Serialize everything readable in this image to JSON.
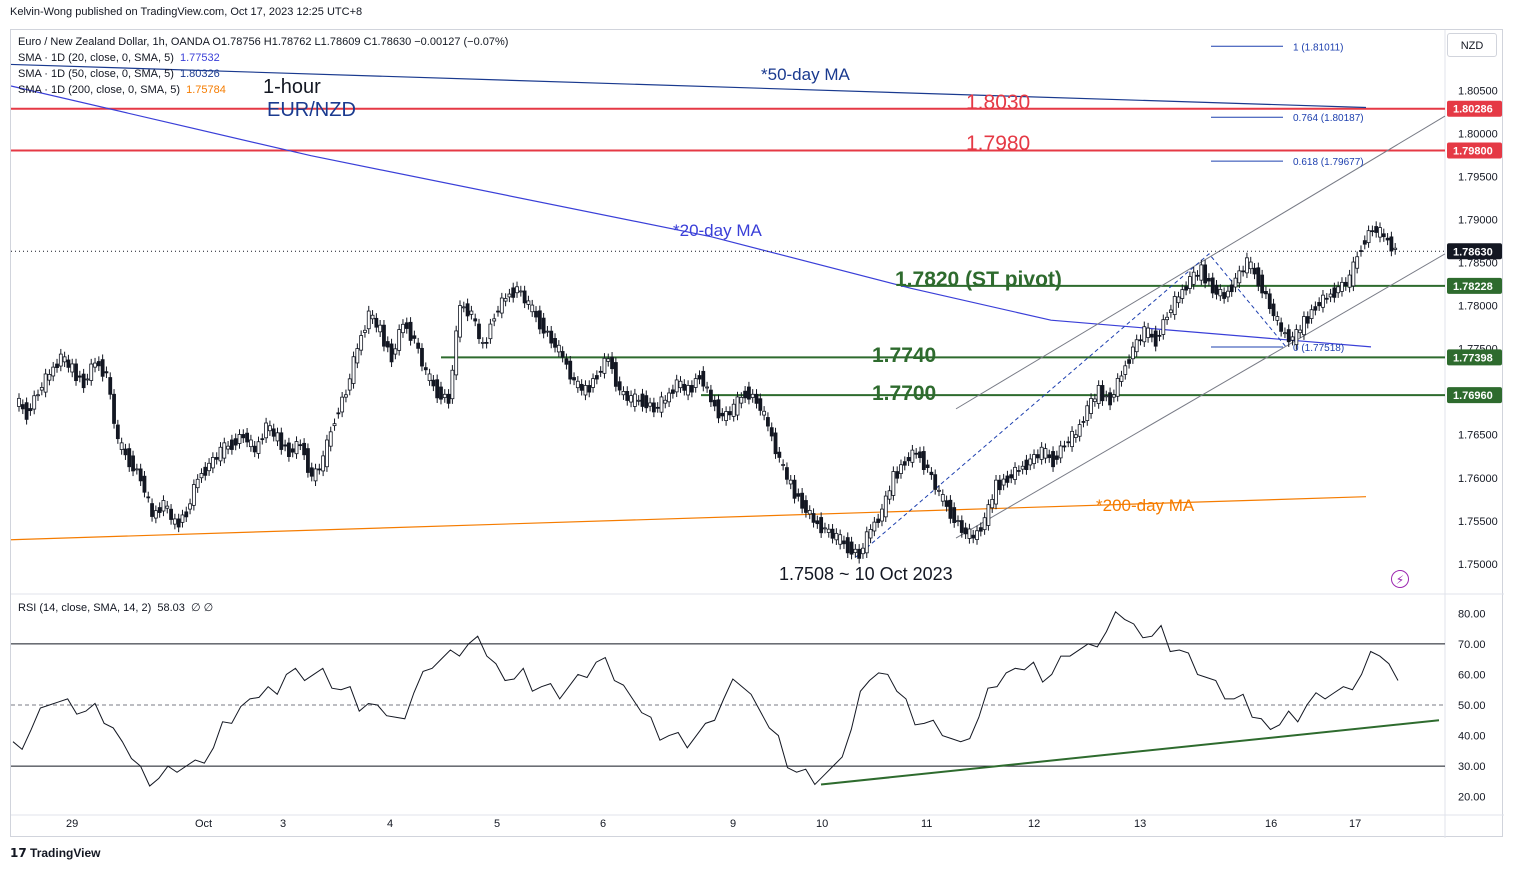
{
  "header": {
    "publisher": "Kelvin-Wong published on TradingView.com, Oct 17, 2023 12:25 UTC+8"
  },
  "legend": {
    "main": "Euro / New Zealand Dollar, 1h, OANDA  O1.78756  H1.78762  L1.78609  C1.78630  −0.00127 (−0.07%)",
    "sma20_label": "SMA · 1D (20, close, 0, SMA, 5)",
    "sma20_value": "1.77532",
    "sma50_label": "SMA · 1D (50, close, 0, SMA, 5)",
    "sma50_value": "1.80326",
    "sma200_label": "SMA · 1D (200, close, 0, SMA, 5)",
    "sma200_value": "1.75784",
    "rsi_label": "RSI (14, close, SMA, 14, 2)",
    "rsi_value": "58.03",
    "rsi_extra": "∅  ∅"
  },
  "currency": "NZD",
  "footer": "TradingView",
  "colors": {
    "sma20": "#3a3fd8",
    "sma50": "#1a3a8f",
    "sma200": "#f57c00",
    "resistance": "#e53945",
    "support": "#2e6b2e",
    "candle": "#131722",
    "rsi_line": "#131722",
    "rsi_fill": "#f8bbc4",
    "rsi_fill_low": "#b7e4c7",
    "fib": "#1e40af"
  },
  "chart_data": {
    "type": "candlestick",
    "instrument": "EUR/NZD",
    "timeframe": "1h",
    "x_ticks": [
      "29",
      "Oct",
      "3",
      "4",
      "5",
      "6",
      "9",
      "10",
      "11",
      "12",
      "13",
      "16",
      "17"
    ],
    "y_ticks": [
      "1.80500",
      "1.80000",
      "1.79500",
      "1.79000",
      "1.78500",
      "1.78000",
      "1.77500",
      "1.76500",
      "1.76000",
      "1.75500",
      "1.75000"
    ],
    "ylim": [
      1.7465,
      1.812
    ],
    "price_labels": [
      {
        "text": "1.80286",
        "value": 1.80286,
        "color": "#e53945"
      },
      {
        "text": "1.79800",
        "value": 1.798,
        "color": "#e53945"
      },
      {
        "text": "1.78630",
        "value": 1.7863,
        "color": "#131722"
      },
      {
        "text": "1.78228",
        "value": 1.78228,
        "color": "#2e6b2e"
      },
      {
        "text": "1.77398",
        "value": 1.77398,
        "color": "#2e6b2e"
      },
      {
        "text": "1.76960",
        "value": 1.7696,
        "color": "#2e6b2e"
      }
    ],
    "annotations": {
      "title_line1": "1-hour",
      "title_line2": "EUR/NZD",
      "ma50": "*50-day MA",
      "ma20": "*20-day MA",
      "ma200": "*200-day MA",
      "res1": "1.8030",
      "res2": "1.7980",
      "pivot": "1.7820 (ST pivot)",
      "sup1": "1.7740",
      "sup2": "1.7700",
      "low": "1.7508 ~ 10 Oct 2023"
    },
    "fib_levels": [
      {
        "label": "1 (1.81011)",
        "value": 1.81011
      },
      {
        "label": "0.764 (1.80187)",
        "value": 1.80187
      },
      {
        "label": "0.618 (1.79677)",
        "value": 1.79677
      },
      {
        "label": "0 (1.77518)",
        "value": 1.77518
      }
    ],
    "horizontal_levels": [
      {
        "value": 1.80286,
        "color": "#e53945"
      },
      {
        "value": 1.798,
        "color": "#e53945"
      },
      {
        "value": 1.78228,
        "color": "#2e6b2e"
      },
      {
        "value": 1.77398,
        "color": "#2e6b2e"
      },
      {
        "value": 1.7696,
        "color": "#2e6b2e"
      }
    ],
    "price_path": [
      1.769,
      1.7675,
      1.77,
      1.772,
      1.774,
      1.7725,
      1.771,
      1.7735,
      1.772,
      1.764,
      1.762,
      1.76,
      1.7555,
      1.757,
      1.7545,
      1.756,
      1.76,
      1.7615,
      1.763,
      1.764,
      1.765,
      1.763,
      1.766,
      1.7645,
      1.763,
      1.764,
      1.76,
      1.762,
      1.767,
      1.77,
      1.775,
      1.779,
      1.777,
      1.774,
      1.778,
      1.776,
      1.772,
      1.77,
      1.769,
      1.78,
      1.779,
      1.775,
      1.779,
      1.781,
      1.782,
      1.78,
      1.778,
      1.776,
      1.774,
      1.771,
      1.77,
      1.772,
      1.774,
      1.77,
      1.769,
      1.769,
      1.768,
      1.769,
      1.771,
      1.77,
      1.772,
      1.769,
      1.767,
      1.768,
      1.77,
      1.769,
      1.766,
      1.762,
      1.759,
      1.757,
      1.755,
      1.754,
      1.753,
      1.752,
      1.751,
      1.754,
      1.756,
      1.76,
      1.762,
      1.763,
      1.761,
      1.758,
      1.756,
      1.754,
      1.753,
      1.755,
      1.759,
      1.76,
      1.761,
      1.762,
      1.763,
      1.762,
      1.764,
      1.765,
      1.768,
      1.77,
      1.769,
      1.772,
      1.775,
      1.777,
      1.776,
      1.779,
      1.781,
      1.783,
      1.784,
      1.782,
      1.781,
      1.783,
      1.785,
      1.783,
      1.78,
      1.777,
      1.776,
      1.778,
      1.78,
      1.781,
      1.782,
      1.783,
      1.787,
      1.789,
      1.788,
      1.7863
    ],
    "rsi": {
      "ylim": [
        15,
        85
      ],
      "y_ticks": [
        "80.00",
        "70.00",
        "60.00",
        "50.00",
        "40.00",
        "30.00",
        "20.00"
      ],
      "levels": [
        70,
        50,
        30
      ],
      "values": [
        38,
        42,
        50,
        52,
        48,
        44,
        38,
        30,
        26,
        28,
        32,
        36,
        44,
        52,
        56,
        60,
        58,
        62,
        55,
        48,
        50,
        46,
        54,
        62,
        68,
        70,
        66,
        58,
        62,
        56,
        52,
        60,
        64,
        58,
        52,
        46,
        40,
        36,
        44,
        52,
        56,
        48,
        40,
        28,
        24,
        30,
        42,
        58,
        60,
        52,
        44,
        40,
        38,
        46,
        56,
        62,
        64,
        60,
        66,
        70,
        74,
        78,
        72,
        76,
        68,
        60,
        58,
        52,
        46,
        42,
        48,
        50,
        52,
        56,
        60,
        66,
        58
      ]
    }
  }
}
